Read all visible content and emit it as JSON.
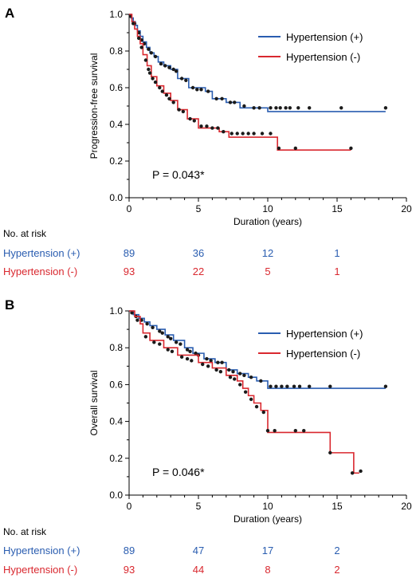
{
  "colors": {
    "hypertension_pos": "#2a5db0",
    "hypertension_neg": "#d9282f",
    "censor_marker": "#1a1a1a",
    "axis": "#000000"
  },
  "risk_label": "No. at risk",
  "chart_data": [
    {
      "panel_letter": "A",
      "type": "line",
      "style": "kaplan-meier step curve with censor marks",
      "xlabel": "Duration (years)",
      "ylabel": "Progression-free survival",
      "xlim": [
        0,
        20
      ],
      "ylim": [
        0,
        1.0
      ],
      "xticks": [
        "0",
        "5",
        "10",
        "15",
        "20"
      ],
      "yticks": [
        "0.0",
        "0.2",
        "0.4",
        "0.6",
        "0.8",
        "1.0"
      ],
      "grid": false,
      "legend_position": "top-right",
      "pvalue": "P = 0.043*",
      "series": [
        {
          "name": "Hypertension (+)",
          "color_key": "hypertension_pos",
          "steps": [
            [
              0,
              1.0
            ],
            [
              0.15,
              0.98
            ],
            [
              0.3,
              0.96
            ],
            [
              0.45,
              0.94
            ],
            [
              0.6,
              0.91
            ],
            [
              0.8,
              0.88
            ],
            [
              1.0,
              0.85
            ],
            [
              1.25,
              0.82
            ],
            [
              1.5,
              0.79
            ],
            [
              1.8,
              0.77
            ],
            [
              2.1,
              0.74
            ],
            [
              2.5,
              0.72
            ],
            [
              3.0,
              0.7
            ],
            [
              3.5,
              0.65
            ],
            [
              4.3,
              0.6
            ],
            [
              5.5,
              0.58
            ],
            [
              6.0,
              0.54
            ],
            [
              7.0,
              0.52
            ],
            [
              8.0,
              0.49
            ],
            [
              10.0,
              0.47
            ],
            [
              18.5,
              0.47
            ]
          ],
          "censored": [
            [
              0.1,
              0.99
            ],
            [
              0.4,
              0.95
            ],
            [
              0.7,
              0.9
            ],
            [
              0.9,
              0.86
            ],
            [
              1.1,
              0.84
            ],
            [
              1.4,
              0.81
            ],
            [
              1.6,
              0.79
            ],
            [
              1.9,
              0.77
            ],
            [
              2.3,
              0.73
            ],
            [
              2.6,
              0.72
            ],
            [
              2.9,
              0.71
            ],
            [
              3.2,
              0.7
            ],
            [
              3.4,
              0.69
            ],
            [
              3.8,
              0.65
            ],
            [
              4.1,
              0.64
            ],
            [
              4.6,
              0.6
            ],
            [
              4.9,
              0.59
            ],
            [
              5.2,
              0.59
            ],
            [
              5.7,
              0.58
            ],
            [
              6.3,
              0.54
            ],
            [
              6.7,
              0.54
            ],
            [
              7.3,
              0.52
            ],
            [
              7.6,
              0.52
            ],
            [
              8.3,
              0.5
            ],
            [
              9.0,
              0.49
            ],
            [
              9.4,
              0.49
            ],
            [
              10.2,
              0.49
            ],
            [
              10.6,
              0.49
            ],
            [
              10.9,
              0.49
            ],
            [
              11.3,
              0.49
            ],
            [
              11.6,
              0.49
            ],
            [
              12.2,
              0.49
            ],
            [
              13.0,
              0.49
            ],
            [
              15.3,
              0.49
            ],
            [
              18.5,
              0.49
            ]
          ]
        },
        {
          "name": "Hypertension (-)",
          "color_key": "hypertension_neg",
          "steps": [
            [
              0,
              1.0
            ],
            [
              0.2,
              0.96
            ],
            [
              0.4,
              0.92
            ],
            [
              0.6,
              0.88
            ],
            [
              0.8,
              0.84
            ],
            [
              1.0,
              0.78
            ],
            [
              1.3,
              0.72
            ],
            [
              1.6,
              0.66
            ],
            [
              2.0,
              0.61
            ],
            [
              2.5,
              0.57
            ],
            [
              3.0,
              0.53
            ],
            [
              3.5,
              0.48
            ],
            [
              4.2,
              0.43
            ],
            [
              5.0,
              0.38
            ],
            [
              6.5,
              0.36
            ],
            [
              7.2,
              0.33
            ],
            [
              8.5,
              0.33
            ],
            [
              10.7,
              0.26
            ],
            [
              16.0,
              0.26
            ]
          ],
          "censored": [
            [
              0.3,
              0.95
            ],
            [
              0.7,
              0.87
            ],
            [
              0.9,
              0.82
            ],
            [
              1.2,
              0.75
            ],
            [
              1.4,
              0.7
            ],
            [
              1.5,
              0.68
            ],
            [
              1.7,
              0.65
            ],
            [
              1.9,
              0.63
            ],
            [
              2.2,
              0.6
            ],
            [
              2.4,
              0.58
            ],
            [
              2.7,
              0.56
            ],
            [
              2.9,
              0.54
            ],
            [
              3.2,
              0.52
            ],
            [
              3.6,
              0.48
            ],
            [
              3.9,
              0.47
            ],
            [
              4.4,
              0.43
            ],
            [
              4.7,
              0.42
            ],
            [
              5.2,
              0.39
            ],
            [
              5.6,
              0.39
            ],
            [
              6.0,
              0.38
            ],
            [
              6.4,
              0.38
            ],
            [
              6.8,
              0.36
            ],
            [
              7.4,
              0.35
            ],
            [
              7.8,
              0.35
            ],
            [
              8.2,
              0.35
            ],
            [
              8.6,
              0.35
            ],
            [
              9.0,
              0.35
            ],
            [
              9.6,
              0.35
            ],
            [
              10.2,
              0.35
            ],
            [
              10.8,
              0.27
            ],
            [
              12.0,
              0.27
            ],
            [
              16.0,
              0.27
            ]
          ]
        }
      ],
      "risk_table": [
        {
          "name": "Hypertension (+)",
          "color_key": "hypertension_pos",
          "counts": [
            "89",
            "36",
            "12",
            "1"
          ]
        },
        {
          "name": "Hypertension (-)",
          "color_key": "hypertension_neg",
          "counts": [
            "93",
            "22",
            "5",
            "1"
          ]
        }
      ]
    },
    {
      "panel_letter": "B",
      "type": "line",
      "style": "kaplan-meier step curve with censor marks",
      "xlabel": "Duration (years)",
      "ylabel": "Overall survival",
      "xlim": [
        0,
        20
      ],
      "ylim": [
        0,
        1.0
      ],
      "xticks": [
        "0",
        "5",
        "10",
        "15",
        "20"
      ],
      "yticks": [
        "0.0",
        "0.2",
        "0.4",
        "0.6",
        "0.8",
        "1.0"
      ],
      "grid": false,
      "legend_position": "top-right",
      "pvalue": "P = 0.046*",
      "series": [
        {
          "name": "Hypertension (+)",
          "color_key": "hypertension_pos",
          "steps": [
            [
              0,
              1.0
            ],
            [
              0.3,
              0.98
            ],
            [
              0.7,
              0.96
            ],
            [
              1.1,
              0.94
            ],
            [
              1.5,
              0.92
            ],
            [
              2.0,
              0.9
            ],
            [
              2.6,
              0.87
            ],
            [
              3.2,
              0.84
            ],
            [
              4.0,
              0.8
            ],
            [
              4.6,
              0.77
            ],
            [
              5.4,
              0.74
            ],
            [
              6.2,
              0.72
            ],
            [
              7.0,
              0.68
            ],
            [
              7.8,
              0.66
            ],
            [
              8.6,
              0.64
            ],
            [
              9.2,
              0.62
            ],
            [
              10.0,
              0.58
            ],
            [
              18.5,
              0.58
            ]
          ],
          "censored": [
            [
              0.2,
              0.99
            ],
            [
              0.5,
              0.97
            ],
            [
              0.9,
              0.95
            ],
            [
              1.3,
              0.93
            ],
            [
              1.7,
              0.91
            ],
            [
              2.2,
              0.89
            ],
            [
              2.4,
              0.88
            ],
            [
              2.8,
              0.86
            ],
            [
              3.0,
              0.85
            ],
            [
              3.4,
              0.83
            ],
            [
              3.7,
              0.82
            ],
            [
              4.2,
              0.79
            ],
            [
              4.4,
              0.78
            ],
            [
              4.8,
              0.77
            ],
            [
              5.0,
              0.76
            ],
            [
              5.6,
              0.74
            ],
            [
              5.9,
              0.73
            ],
            [
              6.4,
              0.72
            ],
            [
              6.7,
              0.72
            ],
            [
              7.2,
              0.68
            ],
            [
              7.5,
              0.67
            ],
            [
              8.0,
              0.66
            ],
            [
              8.3,
              0.65
            ],
            [
              8.8,
              0.64
            ],
            [
              9.5,
              0.62
            ],
            [
              10.2,
              0.59
            ],
            [
              10.6,
              0.59
            ],
            [
              11.0,
              0.59
            ],
            [
              11.4,
              0.59
            ],
            [
              11.9,
              0.59
            ],
            [
              12.3,
              0.59
            ],
            [
              13.0,
              0.59
            ],
            [
              14.5,
              0.59
            ],
            [
              18.5,
              0.59
            ]
          ]
        },
        {
          "name": "Hypertension (-)",
          "color_key": "hypertension_neg",
          "steps": [
            [
              0,
              1.0
            ],
            [
              0.4,
              0.97
            ],
            [
              0.8,
              0.93
            ],
            [
              1.0,
              0.88
            ],
            [
              1.5,
              0.84
            ],
            [
              2.5,
              0.8
            ],
            [
              3.5,
              0.76
            ],
            [
              5.0,
              0.72
            ],
            [
              6.0,
              0.69
            ],
            [
              7.0,
              0.65
            ],
            [
              7.8,
              0.62
            ],
            [
              8.2,
              0.58
            ],
            [
              8.6,
              0.54
            ],
            [
              9.0,
              0.5
            ],
            [
              9.5,
              0.46
            ],
            [
              10.0,
              0.34
            ],
            [
              14.5,
              0.23
            ],
            [
              16.2,
              0.12
            ],
            [
              16.6,
              0.12
            ]
          ],
          "censored": [
            [
              0.6,
              0.95
            ],
            [
              1.2,
              0.86
            ],
            [
              1.8,
              0.83
            ],
            [
              2.2,
              0.82
            ],
            [
              2.8,
              0.79
            ],
            [
              3.1,
              0.78
            ],
            [
              3.8,
              0.75
            ],
            [
              4.2,
              0.74
            ],
            [
              4.5,
              0.73
            ],
            [
              5.3,
              0.71
            ],
            [
              5.7,
              0.7
            ],
            [
              6.3,
              0.68
            ],
            [
              6.6,
              0.67
            ],
            [
              7.3,
              0.64
            ],
            [
              7.6,
              0.63
            ],
            [
              8.0,
              0.6
            ],
            [
              8.4,
              0.56
            ],
            [
              8.8,
              0.52
            ],
            [
              9.2,
              0.48
            ],
            [
              9.7,
              0.45
            ],
            [
              10.0,
              0.35
            ],
            [
              10.5,
              0.35
            ],
            [
              12.0,
              0.35
            ],
            [
              12.6,
              0.35
            ],
            [
              14.5,
              0.23
            ],
            [
              16.1,
              0.12
            ],
            [
              16.7,
              0.13
            ]
          ]
        }
      ],
      "risk_table": [
        {
          "name": "Hypertension (+)",
          "color_key": "hypertension_pos",
          "counts": [
            "89",
            "47",
            "17",
            "2"
          ]
        },
        {
          "name": "Hypertension (-)",
          "color_key": "hypertension_neg",
          "counts": [
            "93",
            "44",
            "8",
            "2"
          ]
        }
      ]
    }
  ]
}
